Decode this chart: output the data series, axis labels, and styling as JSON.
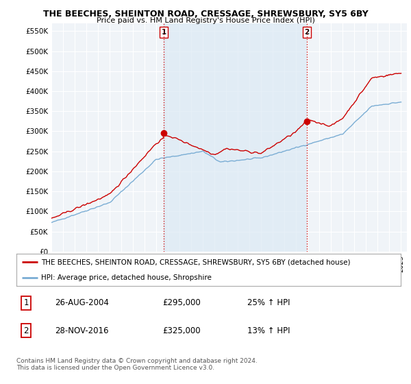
{
  "title": "THE BEECHES, SHEINTON ROAD, CRESSAGE, SHREWSBURY, SY5 6BY",
  "subtitle": "Price paid vs. HM Land Registry's House Price Index (HPI)",
  "legend_label_red": "THE BEECHES, SHEINTON ROAD, CRESSAGE, SHREWSBURY, SY5 6BY (detached house)",
  "legend_label_blue": "HPI: Average price, detached house, Shropshire",
  "footer": "Contains HM Land Registry data © Crown copyright and database right 2024.\nThis data is licensed under the Open Government Licence v3.0.",
  "transaction1_label": "1",
  "transaction1_date": "26-AUG-2004",
  "transaction1_price": "£295,000",
  "transaction1_pct": "25% ↑ HPI",
  "transaction2_label": "2",
  "transaction2_date": "28-NOV-2016",
  "transaction2_price": "£325,000",
  "transaction2_pct": "13% ↑ HPI",
  "red_color": "#cc0000",
  "blue_color": "#7aadd4",
  "blue_fill": "#dce9f5",
  "background_color": "#ffffff",
  "plot_bg_color": "#f0f4f8",
  "ylim": [
    0,
    570000
  ],
  "yticks": [
    0,
    50000,
    100000,
    150000,
    200000,
    250000,
    300000,
    350000,
    400000,
    450000,
    500000,
    550000
  ],
  "ytick_labels": [
    "£0",
    "£50K",
    "£100K",
    "£150K",
    "£200K",
    "£250K",
    "£300K",
    "£350K",
    "£400K",
    "£450K",
    "£500K",
    "£550K"
  ],
  "vline1_x": 2004.65,
  "vline2_x": 2016.91,
  "xmin": 1995.0,
  "xmax": 2025.5,
  "trans1_dot_y": 295000,
  "trans2_dot_y": 325000
}
